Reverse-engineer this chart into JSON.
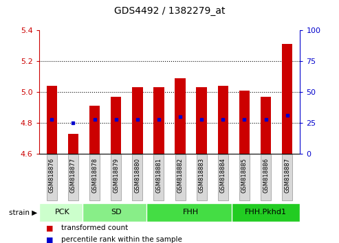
{
  "title": "GDS4492 / 1382279_at",
  "samples": [
    "GSM818876",
    "GSM818877",
    "GSM818878",
    "GSM818879",
    "GSM818880",
    "GSM818881",
    "GSM818882",
    "GSM818883",
    "GSM818884",
    "GSM818885",
    "GSM818886",
    "GSM818887"
  ],
  "red_values": [
    5.04,
    4.73,
    4.91,
    4.97,
    5.03,
    5.03,
    5.09,
    5.03,
    5.04,
    5.01,
    4.97,
    5.31
  ],
  "blue_values": [
    4.82,
    4.8,
    4.82,
    4.82,
    4.82,
    4.82,
    4.84,
    4.82,
    4.82,
    4.82,
    4.82,
    4.85
  ],
  "ylim_left": [
    4.6,
    5.4
  ],
  "ylim_right": [
    0,
    100
  ],
  "yticks_left": [
    4.6,
    4.8,
    5.0,
    5.2,
    5.4
  ],
  "yticks_right": [
    0,
    25,
    50,
    75,
    100
  ],
  "grid_values": [
    4.8,
    5.0,
    5.2
  ],
  "bar_bottom": 4.6,
  "bar_color": "#cc0000",
  "dot_color": "#0000cc",
  "groups": [
    {
      "label": "PCK",
      "start": 0,
      "end": 2,
      "color": "#ccffcc"
    },
    {
      "label": "SD",
      "start": 2,
      "end": 5,
      "color": "#88ee88"
    },
    {
      "label": "FHH",
      "start": 5,
      "end": 9,
      "color": "#44dd44"
    },
    {
      "label": "FHH.Pkhd1",
      "start": 9,
      "end": 12,
      "color": "#22cc22"
    }
  ],
  "legend": [
    {
      "label": "transformed count",
      "color": "#cc0000"
    },
    {
      "label": "percentile rank within the sample",
      "color": "#0000cc"
    }
  ],
  "title_color": "#000000",
  "left_tick_color": "#cc0000",
  "right_tick_color": "#0000cc",
  "sample_box_color": "#d8d8d8",
  "sample_border_color": "#aaaaaa"
}
